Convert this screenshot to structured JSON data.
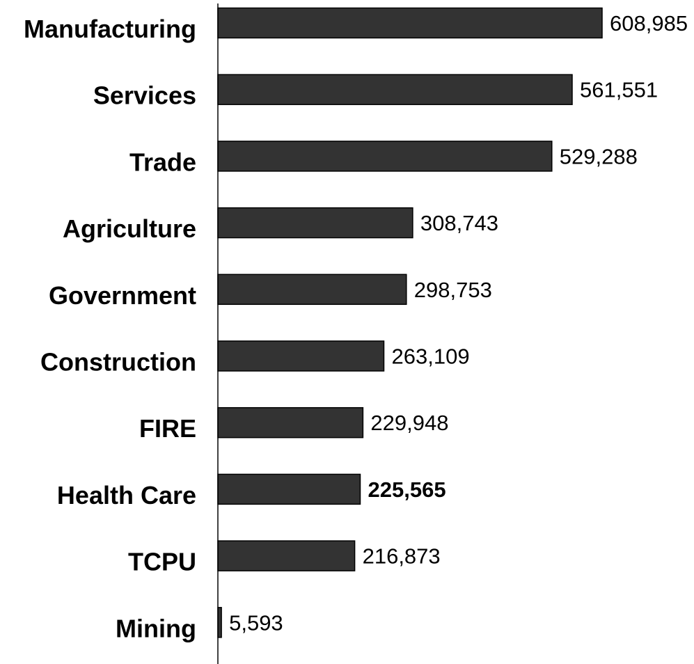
{
  "chart_data": {
    "type": "bar",
    "orientation": "horizontal",
    "categories": [
      "Manufacturing",
      "Services",
      "Trade",
      "Agriculture",
      "Government",
      "Construction",
      "FIRE",
      "Health Care",
      "TCPU",
      "Mining"
    ],
    "values": [
      608985,
      561551,
      529288,
      308743,
      298753,
      263109,
      229948,
      225565,
      216873,
      5593
    ],
    "value_labels": [
      "608,985",
      "561,551",
      "529,288",
      "308,743",
      "298,753",
      "263,109",
      "229,948",
      "225,565",
      "216,873",
      "5,593"
    ],
    "highlighted_category": "Health Care",
    "bar_color": "#333333",
    "grid": false,
    "legend": "none"
  }
}
